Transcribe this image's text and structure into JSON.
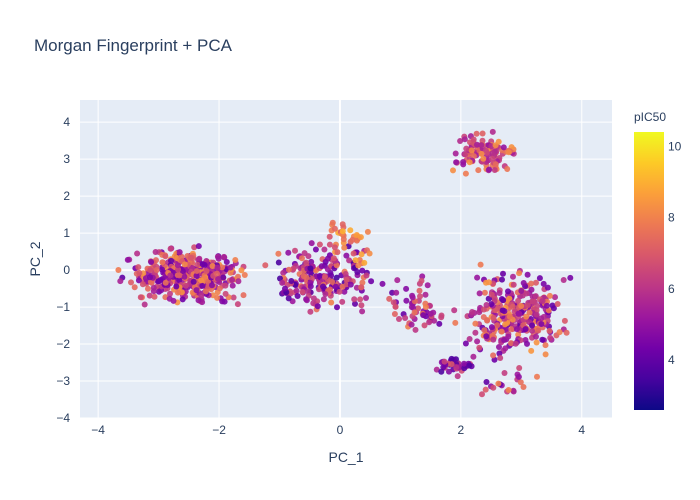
{
  "chart_data": {
    "type": "scatter",
    "title": "Morgan Fingerprint + PCA",
    "xlabel": "PC_1",
    "ylabel": "PC_2",
    "xlim": [
      -4.3,
      4.5
    ],
    "ylim": [
      -4.0,
      4.6
    ],
    "xticks": [
      -4,
      -2,
      0,
      2,
      4
    ],
    "yticks": [
      -4,
      -3,
      -2,
      -1,
      0,
      1,
      2,
      3,
      4
    ],
    "x_tick_labels": [
      "−4",
      "−2",
      "0",
      "2",
      "4"
    ],
    "y_tick_labels": [
      "−4",
      "−3",
      "−2",
      "−1",
      "0",
      "1",
      "2",
      "3",
      "4"
    ],
    "grid": true,
    "background": "#e5ecf6",
    "colorbar": {
      "title": "pIC50",
      "range": [
        2.6,
        10.4
      ],
      "ticks": [
        4,
        6,
        8,
        10
      ],
      "tick_labels": [
        "4",
        "6",
        "8",
        "10"
      ],
      "colorscale": "plasma",
      "colors": [
        "#0d0887",
        "#46039f",
        "#7201a8",
        "#9c179e",
        "#bd3786",
        "#d8576b",
        "#ed7953",
        "#fb9f3a",
        "#fdca26",
        "#f0f921"
      ]
    },
    "clusters": [
      {
        "region": "left band",
        "x_range": [
          -3.8,
          -1.3
        ],
        "y_range": [
          -1.1,
          0.8
        ],
        "pic50_range": [
          4,
          8.5
        ],
        "approx_points": 420
      },
      {
        "region": "center band",
        "x_range": [
          -1.4,
          0.8
        ],
        "y_range": [
          -1.3,
          0.9
        ],
        "pic50_range": [
          3.5,
          8
        ],
        "approx_points": 220
      },
      {
        "region": "center upper",
        "x_range": [
          -0.6,
          0.8
        ],
        "y_range": [
          0,
          1.6
        ],
        "pic50_range": [
          6.5,
          9
        ],
        "approx_points": 40
      },
      {
        "region": "bridge",
        "x_range": [
          0.6,
          1.9
        ],
        "y_range": [
          -2,
          0
        ],
        "pic50_range": [
          4,
          8
        ],
        "approx_points": 60
      },
      {
        "region": "lower left cluster",
        "x_range": [
          1.5,
          2.3
        ],
        "y_range": [
          -2.9,
          -2.3
        ],
        "pic50_range": [
          3.5,
          7
        ],
        "approx_points": 40
      },
      {
        "region": "top right cluster",
        "x_range": [
          1.7,
          3.0
        ],
        "y_range": [
          2.4,
          4.0
        ],
        "pic50_range": [
          5,
          8.5
        ],
        "approx_points": 110
      },
      {
        "region": "right band",
        "x_range": [
          1.8,
          4.0
        ],
        "y_range": [
          -2.7,
          0.3
        ],
        "pic50_range": [
          4,
          8.5
        ],
        "approx_points": 320
      },
      {
        "region": "lower right scatter",
        "x_range": [
          2.0,
          3.6
        ],
        "y_range": [
          -3.6,
          -2.5
        ],
        "pic50_range": [
          4,
          8
        ],
        "approx_points": 20
      }
    ]
  }
}
